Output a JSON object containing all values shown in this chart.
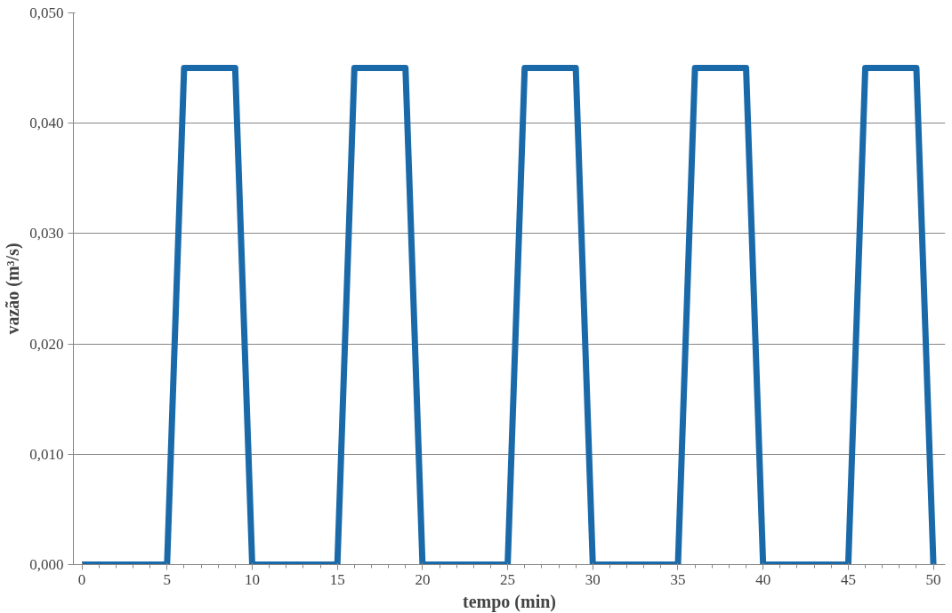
{
  "chart_data": {
    "type": "line",
    "xlabel": "tempo (min)",
    "ylabel": "vazão (m³/s)",
    "x": [
      0,
      5,
      6,
      9,
      10,
      15,
      16,
      19,
      20,
      25,
      26,
      29,
      30,
      35,
      36,
      39,
      40,
      45,
      46,
      49,
      50
    ],
    "series": [
      {
        "color": "#1a6aaa",
        "values": [
          0,
          0,
          0.045,
          0.045,
          0,
          0,
          0.045,
          0.045,
          0,
          0,
          0.045,
          0.045,
          0,
          0,
          0.045,
          0.045,
          0,
          0,
          0.045,
          0.045,
          0
        ]
      }
    ],
    "xlim": [
      -0.5,
      50.7
    ],
    "xticks": [
      0,
      5,
      10,
      15,
      20,
      25,
      30,
      35,
      40,
      45,
      50
    ],
    "ylim": [
      0,
      0.05
    ],
    "yticks": [
      {
        "value": 0,
        "label": "0,000"
      },
      {
        "value": 0.01,
        "label": "0,010"
      },
      {
        "value": 0.02,
        "label": "0,020"
      },
      {
        "value": 0.03,
        "label": "0,030"
      },
      {
        "value": 0.04,
        "label": "0,040"
      },
      {
        "value": 0.05,
        "label": "0,050"
      }
    ],
    "grid": "y",
    "marker": "none",
    "line_style": "solid"
  }
}
